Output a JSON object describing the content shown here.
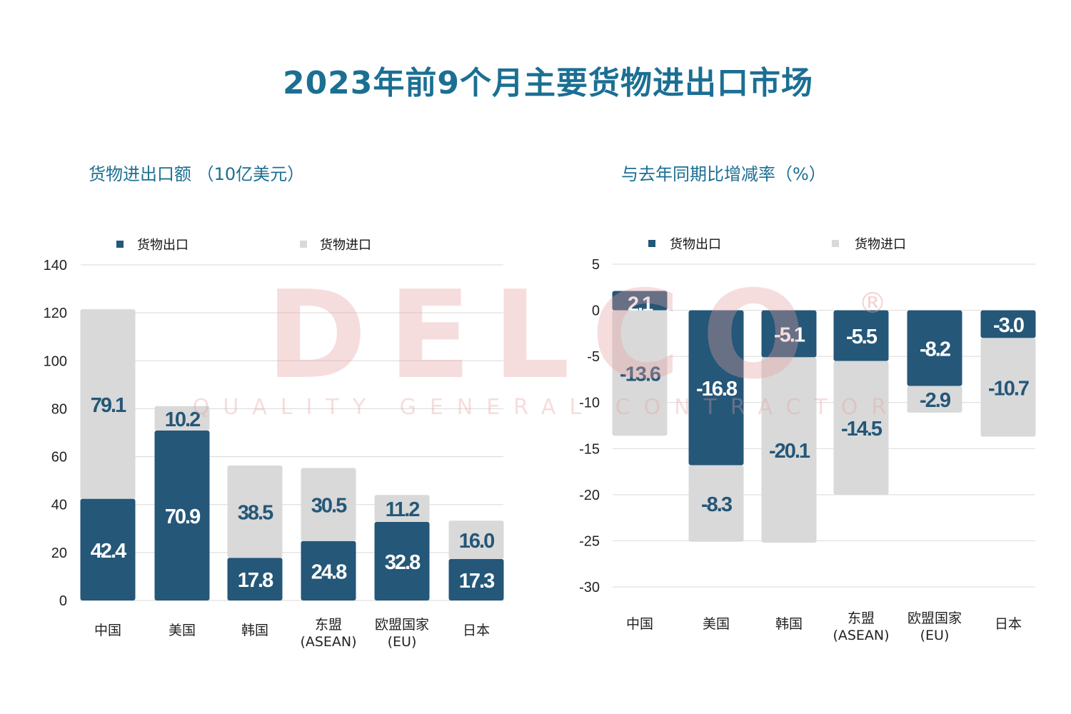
{
  "title": "2023年前9个月主要货物进出口市场",
  "watermark": {
    "logo": "DELCO",
    "tagline": "QUALITY GENERAL CONTRACTOR",
    "mark": "®"
  },
  "colors": {
    "export": "#245778",
    "import": "#d9d9d9",
    "title": "#1b6f93",
    "label_dark": "#245778",
    "label_light": "#ffffff"
  },
  "chart_data": [
    {
      "type": "bar",
      "stacked": true,
      "title": "货物进出口额 （10亿美元）",
      "legend": [
        "货物出口",
        "货物进口"
      ],
      "legend_position": "top",
      "categories": [
        [
          "中国"
        ],
        [
          "美国"
        ],
        [
          "韩国"
        ],
        [
          "东盟",
          "(ASEAN)"
        ],
        [
          "欧盟国家",
          "(EU)"
        ],
        [
          "日本"
        ]
      ],
      "series": [
        {
          "name": "货物出口",
          "values": [
            42.4,
            70.9,
            17.8,
            24.8,
            32.8,
            17.3
          ]
        },
        {
          "name": "货物进口",
          "values": [
            79.1,
            10.2,
            38.5,
            30.5,
            11.2,
            16.0
          ]
        }
      ],
      "ylim": [
        0,
        140
      ],
      "yticks": [
        0,
        20,
        40,
        60,
        80,
        100,
        120,
        140
      ],
      "grid": true
    },
    {
      "type": "bar",
      "stacked": true,
      "title": "与去年同期比增减率（%）",
      "legend": [
        "货物出口",
        "货物进口"
      ],
      "legend_position": "top",
      "categories": [
        [
          "中国"
        ],
        [
          "美国"
        ],
        [
          "韩国"
        ],
        [
          "东盟",
          "(ASEAN)"
        ],
        [
          "欧盟国家",
          "(EU)"
        ],
        [
          "日本"
        ]
      ],
      "series": [
        {
          "name": "货物出口",
          "values": [
            2.1,
            -16.8,
            -5.1,
            -5.5,
            -8.2,
            -3.0
          ]
        },
        {
          "name": "货物进口",
          "values": [
            -13.6,
            -8.3,
            -20.1,
            -14.5,
            -2.9,
            -10.7
          ]
        }
      ],
      "ylim": [
        -30,
        5
      ],
      "yticks": [
        5,
        0,
        -5,
        -10,
        -15,
        -20,
        -25,
        -30
      ],
      "grid": true
    }
  ]
}
